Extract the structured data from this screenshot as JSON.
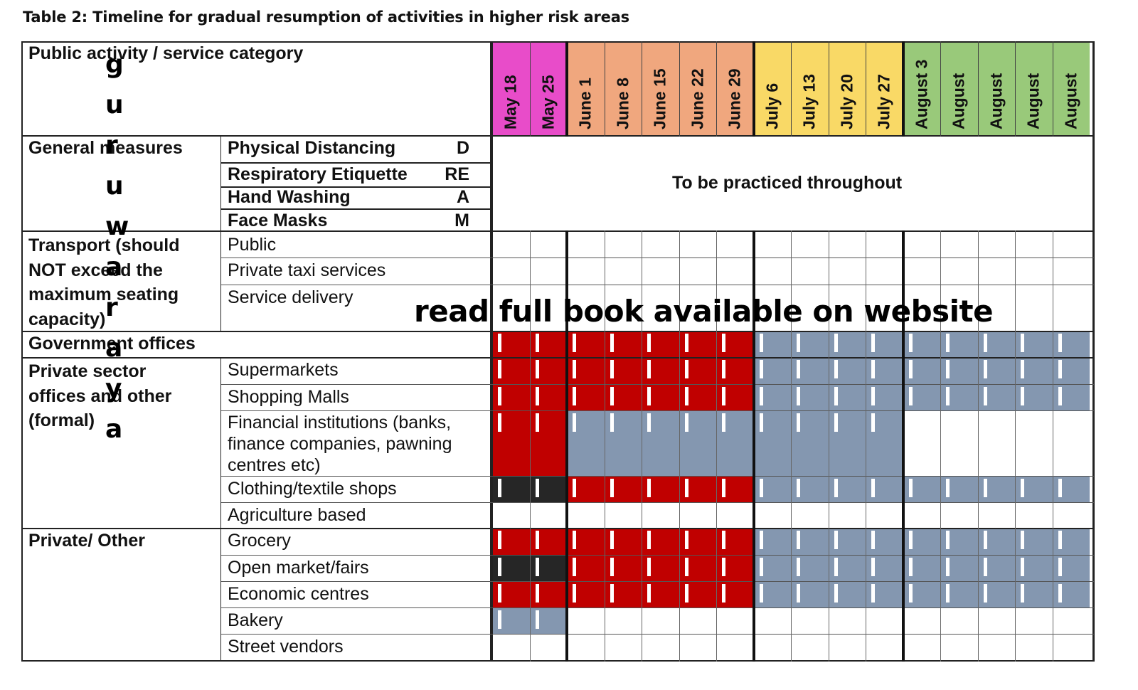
{
  "caption": "Table 2: Timeline for gradual resumption of activities in higher risk areas",
  "header": {
    "category_label": "Public activity / service category",
    "dates": [
      {
        "label": "May 18",
        "color": "#e84cc9"
      },
      {
        "label": "May 25",
        "color": "#e84cc9"
      },
      {
        "label": "June 1",
        "color": "#f0a77e"
      },
      {
        "label": "June 8",
        "color": "#f0a77e"
      },
      {
        "label": "June 15",
        "color": "#f0a77e"
      },
      {
        "label": "June 22",
        "color": "#f0a77e"
      },
      {
        "label": "June 29",
        "color": "#f0a77e"
      },
      {
        "label": "July 6",
        "color": "#f9d966"
      },
      {
        "label": "July 13",
        "color": "#f9d966"
      },
      {
        "label": "July 20",
        "color": "#f9d966"
      },
      {
        "label": "July 27",
        "color": "#f9d966"
      },
      {
        "label": "August 3",
        "color": "#99c97a"
      },
      {
        "label": "August",
        "color": "#99c97a"
      },
      {
        "label": "August",
        "color": "#99c97a"
      },
      {
        "label": "August",
        "color": "#99c97a"
      },
      {
        "label": "August",
        "color": "#99c97a"
      }
    ]
  },
  "general_measures": {
    "label": "General measures",
    "items": [
      {
        "name": "Physical Distancing",
        "code": "D"
      },
      {
        "name": "Respiratory Etiquette",
        "code": "RE"
      },
      {
        "name": "Hand Washing",
        "code": "A"
      },
      {
        "name": "Face Masks",
        "code": "M"
      }
    ],
    "note": "To be practiced throughout"
  },
  "groups": {
    "transport": "Transport (should\nNOT exceed the\nmaximum seating\ncapacity)",
    "government": "Government offices",
    "private_sector": "Private sector\noffices and other\n(formal)",
    "private_other": "Private/ Other"
  },
  "rows": [
    {
      "label": "Public"
    },
    {
      "label": "Private taxi services"
    },
    {
      "label": "Service delivery"
    },
    {
      "label": ""
    },
    {
      "label": "Supermarkets"
    },
    {
      "label": "Shopping Malls"
    },
    {
      "label": "Financial institutions (banks,\nfinance companies, pawning\ncentres etc)"
    },
    {
      "label": "Clothing/textile shops"
    },
    {
      "label": "Agriculture based"
    },
    {
      "label": "Grocery"
    },
    {
      "label": "Open market/fairs"
    },
    {
      "label": "Economic centres"
    },
    {
      "label": "Bakery"
    },
    {
      "label": "Street vendors"
    }
  ],
  "status_legend_colors": {
    "K": "#262626",
    "R": "#c00000",
    "B": "#8497b0",
    "W": "#ffffff"
  },
  "schedule": [
    "WWWWWWWWWWWWWWWW",
    "WWWWWWWWWWWWWWWW",
    "WWWWWWWWWWWWWWWW",
    "RRRRRRRBBBBBBBBB",
    "RRRRRRRBBBBBBBBB",
    "RRRRRRRBBBBBBBBB",
    "RRBBBBBBBBBWWWWW",
    "KKRRRRRBBBBBBBBB",
    "WWWWWWWWWWWWWWWW",
    "RRRRRRRBBBBBBBBB",
    "KKRRRRRBBBBBBBBB",
    "RRRRRRRBBBBBBBBB",
    "BBWWWWWWWWWWWWWW",
    "WWWWWWWWWWWWWWWW"
  ],
  "watermark": {
    "vertical": "guruwaraya",
    "banner": "read full book available on website"
  }
}
